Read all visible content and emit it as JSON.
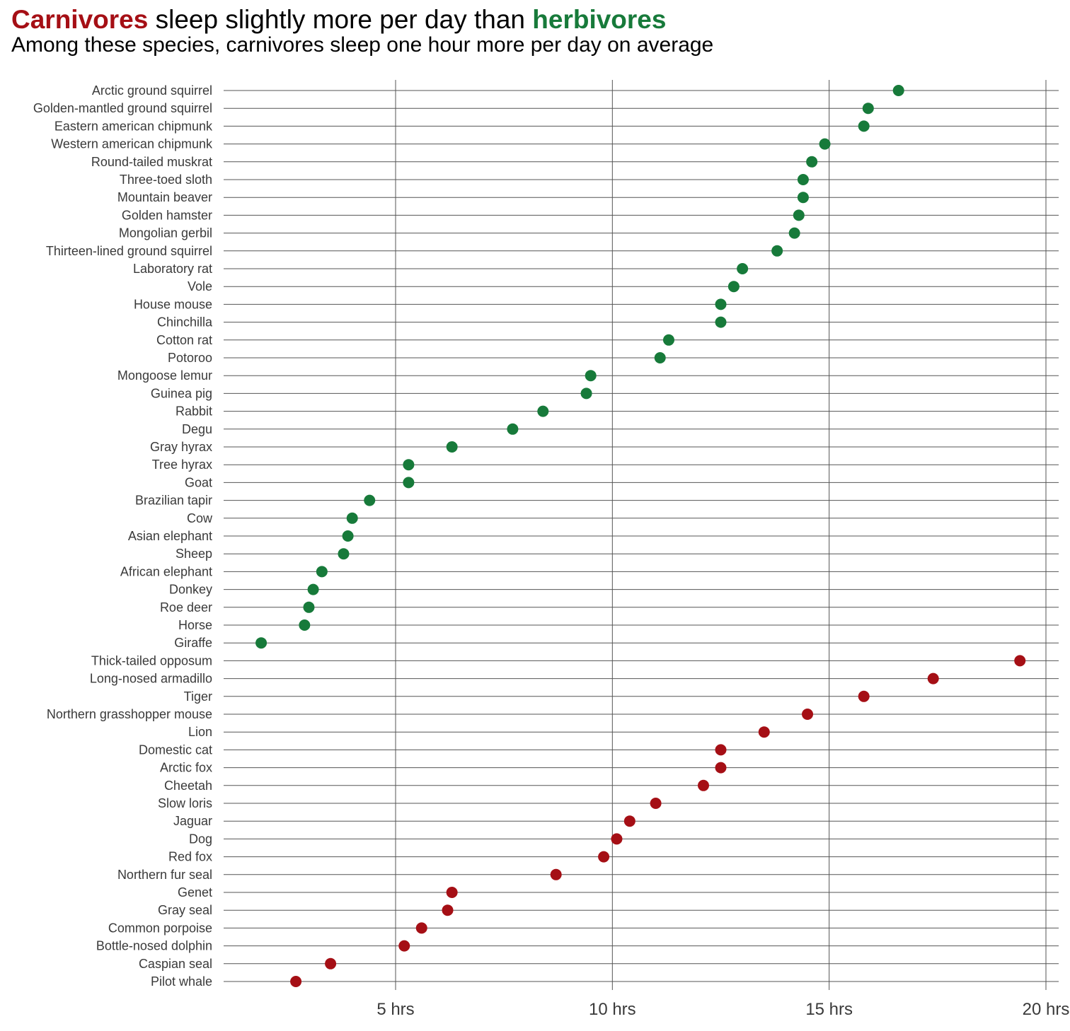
{
  "title": {
    "part1": "Carnivores",
    "part2": " sleep slightly more per day than ",
    "part3": "herbivores"
  },
  "subtitle": "Among these species, carnivores sleep one hour more per day on average",
  "colors": {
    "carnivore": "#a50f15",
    "herbivore": "#177a3a",
    "grid": "#555555"
  },
  "chart_data": {
    "type": "scatter",
    "title": "Carnivores sleep slightly more per day than herbivores",
    "subtitle": "Among these species, carnivores sleep one hour more per day on average",
    "xlabel": "",
    "ylabel": "",
    "xlim": [
      1,
      20.3
    ],
    "x_ticks": [
      5,
      10,
      15,
      20
    ],
    "x_tick_labels": [
      "5 hrs",
      "10 hrs",
      "15 hrs",
      "20 hrs"
    ],
    "grid": true,
    "series": [
      {
        "group": "herbivore",
        "points": [
          {
            "label": "Arctic ground squirrel",
            "value": 16.6
          },
          {
            "label": "Golden-mantled ground squirrel",
            "value": 15.9
          },
          {
            "label": "Eastern american chipmunk",
            "value": 15.8
          },
          {
            "label": "Western american chipmunk",
            "value": 14.9
          },
          {
            "label": "Round-tailed muskrat",
            "value": 14.6
          },
          {
            "label": "Three-toed sloth",
            "value": 14.4
          },
          {
            "label": "Mountain beaver",
            "value": 14.4
          },
          {
            "label": "Golden hamster",
            "value": 14.3
          },
          {
            "label": "Mongolian gerbil",
            "value": 14.2
          },
          {
            "label": "Thirteen-lined ground squirrel",
            "value": 13.8
          },
          {
            "label": "Laboratory rat",
            "value": 13.0
          },
          {
            "label": "Vole ",
            "value": 12.8
          },
          {
            "label": "House mouse",
            "value": 12.5
          },
          {
            "label": "Chinchilla",
            "value": 12.5
          },
          {
            "label": "Cotton rat",
            "value": 11.3
          },
          {
            "label": "Potoroo",
            "value": 11.1
          },
          {
            "label": "Mongoose lemur",
            "value": 9.5
          },
          {
            "label": "Guinea pig",
            "value": 9.4
          },
          {
            "label": "Rabbit",
            "value": 8.4
          },
          {
            "label": "Degu",
            "value": 7.7
          },
          {
            "label": "Gray hyrax",
            "value": 6.3
          },
          {
            "label": "Tree hyrax",
            "value": 5.3
          },
          {
            "label": "Goat",
            "value": 5.3
          },
          {
            "label": "Brazilian tapir",
            "value": 4.4
          },
          {
            "label": "Cow",
            "value": 4.0
          },
          {
            "label": "Asian elephant",
            "value": 3.9
          },
          {
            "label": "Sheep",
            "value": 3.8
          },
          {
            "label": "African elephant",
            "value": 3.3
          },
          {
            "label": "Donkey",
            "value": 3.1
          },
          {
            "label": "Roe deer",
            "value": 3.0
          },
          {
            "label": "Horse",
            "value": 2.9
          },
          {
            "label": "Giraffe",
            "value": 1.9
          }
        ]
      },
      {
        "group": "carnivore",
        "points": [
          {
            "label": "Thick-tailed opposum",
            "value": 19.4
          },
          {
            "label": "Long-nosed armadillo",
            "value": 17.4
          },
          {
            "label": "Tiger",
            "value": 15.8
          },
          {
            "label": "Northern grasshopper mouse",
            "value": 14.5
          },
          {
            "label": "Lion",
            "value": 13.5
          },
          {
            "label": "Domestic cat",
            "value": 12.5
          },
          {
            "label": "Arctic fox",
            "value": 12.5
          },
          {
            "label": "Cheetah",
            "value": 12.1
          },
          {
            "label": "Slow loris",
            "value": 11.0
          },
          {
            "label": "Jaguar",
            "value": 10.4
          },
          {
            "label": "Dog",
            "value": 10.1
          },
          {
            "label": "Red fox",
            "value": 9.8
          },
          {
            "label": "Northern fur seal",
            "value": 8.7
          },
          {
            "label": "Genet",
            "value": 6.3
          },
          {
            "label": "Gray seal",
            "value": 6.2
          },
          {
            "label": "Common porpoise",
            "value": 5.6
          },
          {
            "label": "Bottle-nosed dolphin",
            "value": 5.2
          },
          {
            "label": "Caspian seal",
            "value": 3.5
          },
          {
            "label": "Pilot whale",
            "value": 2.7
          }
        ]
      }
    ]
  }
}
